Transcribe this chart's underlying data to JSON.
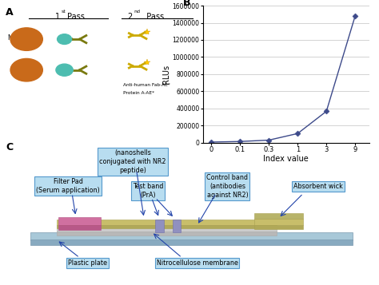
{
  "panel_B": {
    "x": [
      0,
      1,
      2,
      3,
      4,
      5
    ],
    "y": [
      5000,
      12000,
      28000,
      105000,
      365000,
      1480000
    ],
    "x_labels": [
      "0",
      "0.1",
      "0.3",
      "1",
      "3",
      "9"
    ],
    "xlabel": "Index value",
    "ylabel": "RLUs",
    "ylim": [
      0,
      1600000
    ],
    "ytick_vals": [
      0,
      200000,
      400000,
      600000,
      800000,
      1000000,
      1200000,
      1400000,
      1600000
    ],
    "ytick_labels": [
      "0",
      "200000",
      "400000",
      "600000",
      "800000",
      "1000000",
      "1200000",
      "1400000",
      "1600000"
    ],
    "line_color": "#3d4a8a",
    "marker": "D",
    "marker_size": 3.5
  }
}
